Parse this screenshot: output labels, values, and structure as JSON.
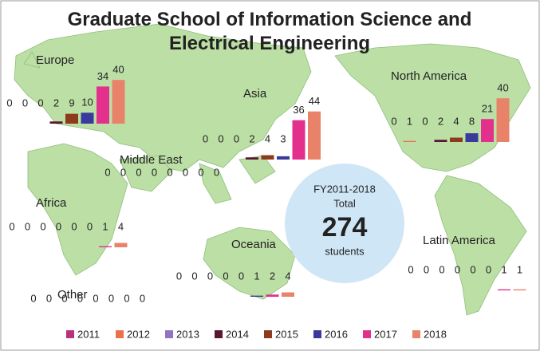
{
  "chart_data": {
    "type": "bar",
    "title": "Graduate School of Information Science and Electrical Engineering",
    "categories": [
      "Europe",
      "Asia",
      "North America",
      "Middle East",
      "Africa",
      "Oceania",
      "Latin America",
      "Other"
    ],
    "series": [
      {
        "name": "2011",
        "color": "#b8317c",
        "values": [
          0,
          0,
          0,
          0,
          0,
          0,
          0,
          0
        ]
      },
      {
        "name": "2012",
        "color": "#e8734a",
        "values": [
          0,
          0,
          1,
          0,
          0,
          0,
          0,
          0
        ]
      },
      {
        "name": "2013",
        "color": "#9273c0",
        "values": [
          0,
          0,
          0,
          0,
          0,
          0,
          0,
          0
        ]
      },
      {
        "name": "2014",
        "color": "#5a1530",
        "values": [
          2,
          2,
          2,
          0,
          0,
          0,
          0,
          0
        ]
      },
      {
        "name": "2015",
        "color": "#8e3a1c",
        "values": [
          9,
          4,
          4,
          0,
          0,
          0,
          0,
          0
        ]
      },
      {
        "name": "2016",
        "color": "#3a3a9c",
        "values": [
          10,
          3,
          8,
          0,
          0,
          1,
          0,
          0
        ]
      },
      {
        "name": "2017",
        "color": "#e2308c",
        "values": [
          34,
          36,
          21,
          0,
          1,
          2,
          1,
          0
        ]
      },
      {
        "name": "2018",
        "color": "#e8836a",
        "values": [
          40,
          44,
          40,
          0,
          4,
          4,
          1,
          0
        ]
      }
    ],
    "annotation": {
      "period": "FY2011-2018",
      "label": "Total",
      "total": 274,
      "unit": "students"
    }
  }
}
